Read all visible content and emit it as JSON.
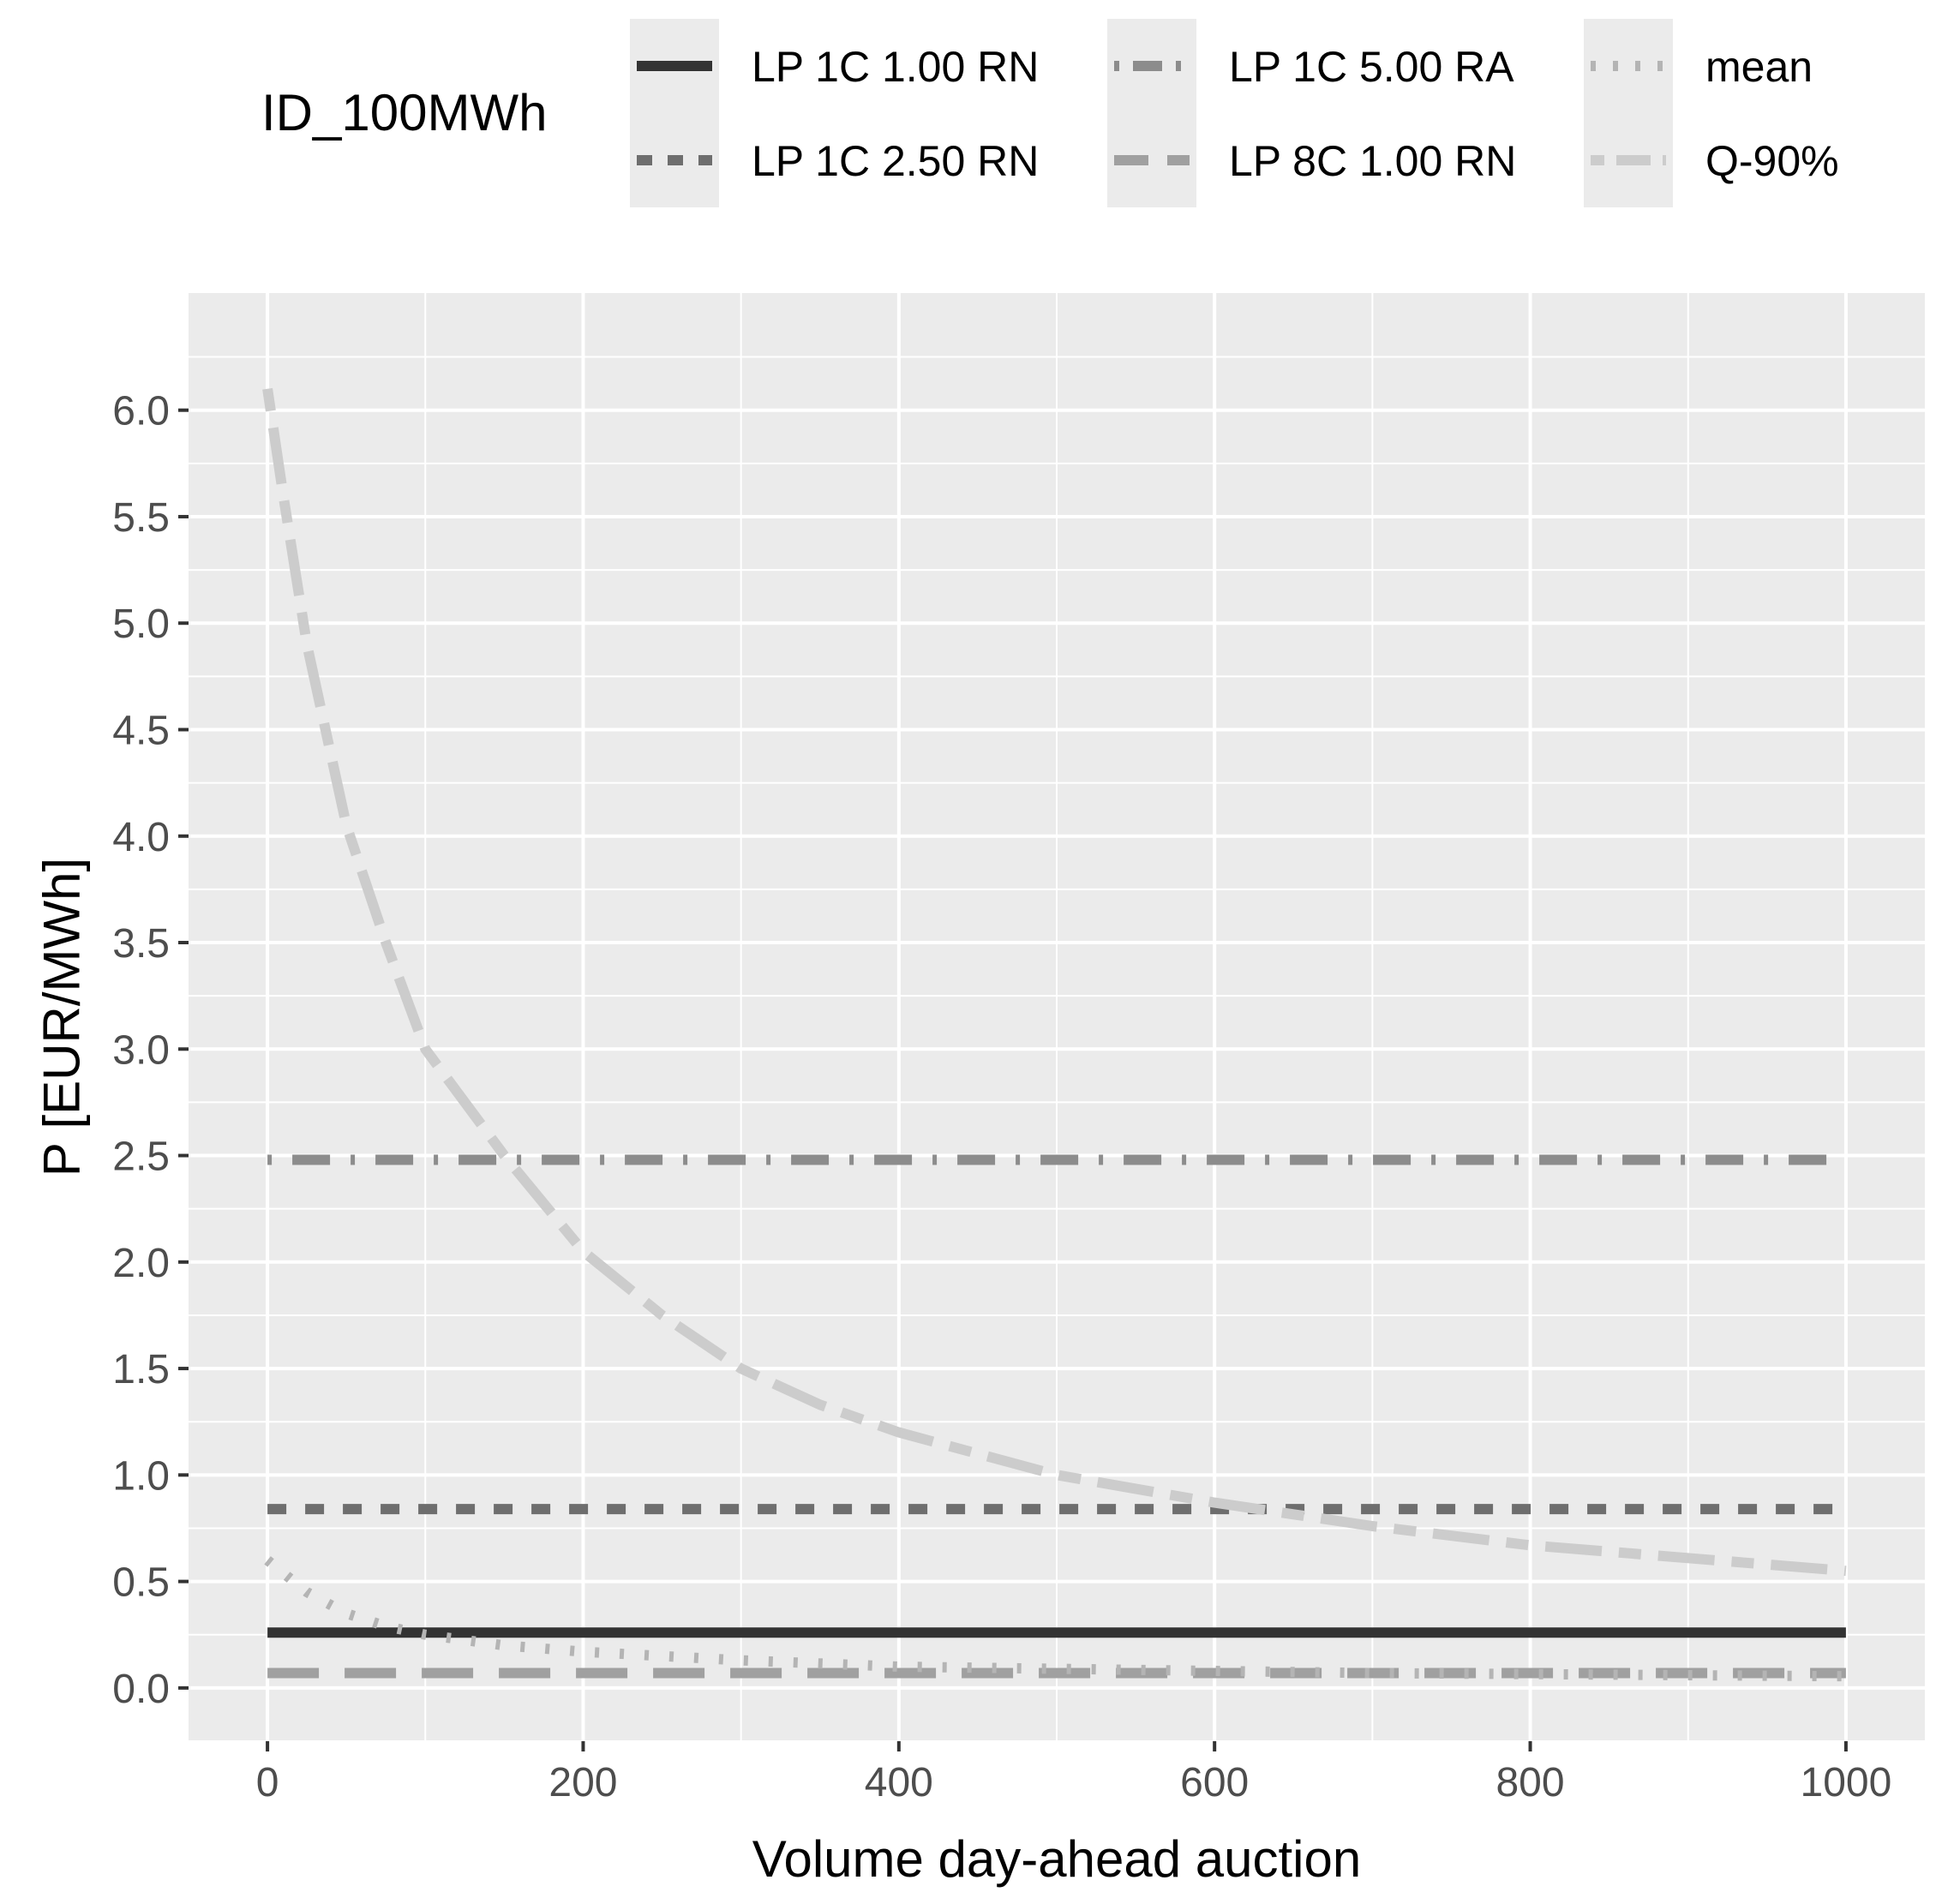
{
  "chart_data": {
    "type": "line",
    "title": "",
    "xlabel": "Volume day-ahead auction",
    "ylabel": "P [EUR/MWh]",
    "xlim": [
      -50,
      1050
    ],
    "ylim": [
      -0.25,
      6.55
    ],
    "x_ticks": [
      0,
      200,
      400,
      600,
      800,
      1000
    ],
    "x_tick_labels": [
      "0",
      "200",
      "400",
      "600",
      "800",
      "1000"
    ],
    "y_ticks": [
      0,
      0.5,
      1,
      1.5,
      2,
      2.5,
      3,
      3.5,
      4,
      4.5,
      5,
      5.5,
      6
    ],
    "y_tick_labels": [
      "0.0",
      "0.5",
      "1.0",
      "1.5",
      "2.0",
      "2.5",
      "3.0",
      "3.5",
      "4.0",
      "4.5",
      "5.0",
      "5.5",
      "6.0"
    ],
    "grid": true,
    "legend": {
      "title": "ID_100MWh",
      "position": "top"
    },
    "series": [
      {
        "name": "LP 1C 1.00 RN",
        "linetype": "solid",
        "color": "#333333",
        "x": [
          0,
          1000
        ],
        "y": [
          0.26,
          0.26
        ]
      },
      {
        "name": "LP 1C 2.50 RN",
        "linetype": "dashed",
        "color": "#6e6e6e",
        "x": [
          0,
          1000
        ],
        "y": [
          0.84,
          0.84
        ]
      },
      {
        "name": "LP 1C 5.00 RA",
        "linetype": "dotdash",
        "color": "#8c8c8c",
        "x": [
          0,
          1000
        ],
        "y": [
          2.48,
          2.48
        ]
      },
      {
        "name": "LP 8C 1.00 RN",
        "linetype": "longdash",
        "color": "#a0a0a0",
        "x": [
          0,
          1000
        ],
        "y": [
          0.07,
          0.07
        ]
      },
      {
        "name": "mean",
        "linetype": "dotted",
        "color": "#b4b4b4",
        "x": [
          0,
          25,
          50,
          75,
          100,
          150,
          200,
          250,
          300,
          400,
          500,
          600,
          700,
          800,
          900,
          1000
        ],
        "y": [
          0.6,
          0.45,
          0.35,
          0.29,
          0.25,
          0.2,
          0.17,
          0.15,
          0.13,
          0.1,
          0.09,
          0.08,
          0.07,
          0.065,
          0.06,
          0.055
        ]
      },
      {
        "name": "Q-90%",
        "linetype": "twodash",
        "color": "#cccccc",
        "x": [
          0,
          10,
          25,
          50,
          75,
          100,
          150,
          200,
          250,
          300,
          350,
          400,
          450,
          500,
          600,
          700,
          800,
          900,
          1000
        ],
        "y": [
          6.1,
          5.6,
          4.9,
          4.05,
          3.5,
          3.0,
          2.5,
          2.05,
          1.75,
          1.5,
          1.33,
          1.2,
          1.1,
          1.0,
          0.87,
          0.76,
          0.67,
          0.61,
          0.55
        ]
      }
    ]
  }
}
